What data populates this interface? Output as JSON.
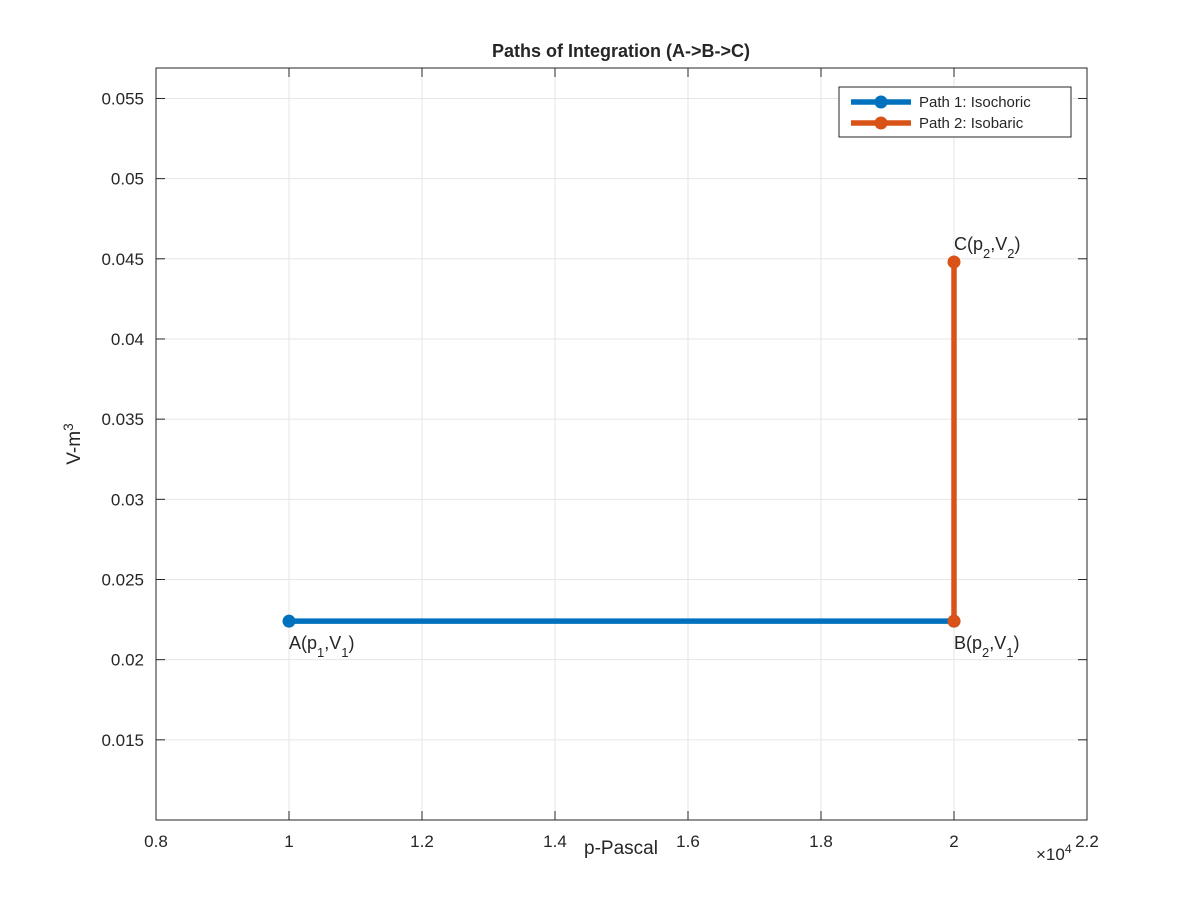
{
  "chart_data": {
    "type": "line",
    "title": "Paths of Integration (A->B->C)",
    "x_label": "p-Pascal",
    "y_label": [
      {
        "text": "V-m"
      },
      {
        "text": "3",
        "sup": true
      }
    ],
    "x_multiplier": [
      {
        "text": "×10"
      },
      {
        "text": "4",
        "sup": true
      }
    ],
    "xlim": [
      8000,
      22000
    ],
    "xticks": [
      {
        "value": 8000,
        "label": "0.8"
      },
      {
        "value": 10000,
        "label": "1"
      },
      {
        "value": 12000,
        "label": "1.2"
      },
      {
        "value": 14000,
        "label": "1.4"
      },
      {
        "value": 16000,
        "label": "1.6"
      },
      {
        "value": 18000,
        "label": "1.8"
      },
      {
        "value": 20000,
        "label": "2"
      },
      {
        "value": 22000,
        "label": "2.2"
      }
    ],
    "ylim": [
      0.01,
      0.0569
    ],
    "yticks": [
      0.015,
      0.02,
      0.025,
      0.03,
      0.035,
      0.04,
      0.045,
      0.05,
      0.055
    ],
    "grid": true,
    "legend": "top-right",
    "series": [
      {
        "name": "Path 1: Isochoric",
        "color": "#0072BD",
        "x": [
          10000,
          20000
        ],
        "values": [
          0.0224,
          0.0224
        ],
        "point_labels": [
          [
            {
              "text": "A(p"
            },
            {
              "text": "1",
              "sub": true
            },
            {
              "text": ",V"
            },
            {
              "text": "1",
              "sub": true
            },
            {
              "text": ")"
            }
          ],
          [
            {
              "text": "B(p"
            },
            {
              "text": "2",
              "sub": true
            },
            {
              "text": ",V"
            },
            {
              "text": "1",
              "sub": true
            },
            {
              "text": ")"
            }
          ]
        ]
      },
      {
        "name": "Path 2: Isobaric",
        "color": "#D95319",
        "x": [
          20000,
          20000
        ],
        "values": [
          0.0224,
          0.0448
        ],
        "point_labels": [
          null,
          [
            {
              "text": "C(p"
            },
            {
              "text": "2",
              "sub": true
            },
            {
              "text": ",V"
            },
            {
              "text": "2",
              "sub": true
            },
            {
              "text": ")"
            }
          ]
        ]
      }
    ]
  }
}
